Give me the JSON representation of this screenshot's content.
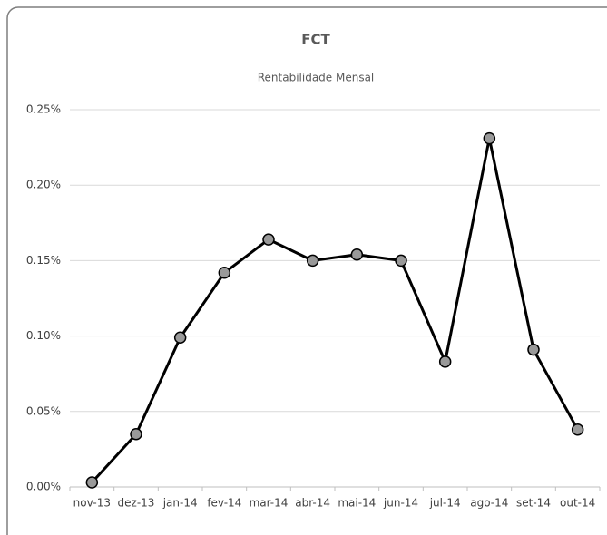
{
  "chart_data": {
    "type": "line",
    "title": "FCT",
    "subtitle": "Rentabilidade Mensal",
    "categories": [
      "nov-13",
      "dez-13",
      "jan-14",
      "fev-14",
      "mar-14",
      "abr-14",
      "mai-14",
      "jun-14",
      "jul-14",
      "ago-14",
      "set-14",
      "out-14"
    ],
    "series": [
      {
        "name": "FCT",
        "color": "#000000",
        "marker_color": "#999999",
        "values": [
          0.003,
          0.035,
          0.099,
          0.142,
          0.164,
          0.15,
          0.154,
          0.15,
          0.083,
          0.231,
          0.091,
          0.038
        ]
      }
    ],
    "ylim": [
      0,
      0.25
    ],
    "yticks": [
      {
        "value": 0,
        "label": "0.00%"
      },
      {
        "value": 0.05,
        "label": "0.05%"
      },
      {
        "value": 0.1,
        "label": "0.10%"
      },
      {
        "value": 0.15,
        "label": "0.15%"
      },
      {
        "value": 0.2,
        "label": "0.20%"
      },
      {
        "value": 0.25,
        "label": "0.25%"
      }
    ],
    "grid": true
  }
}
